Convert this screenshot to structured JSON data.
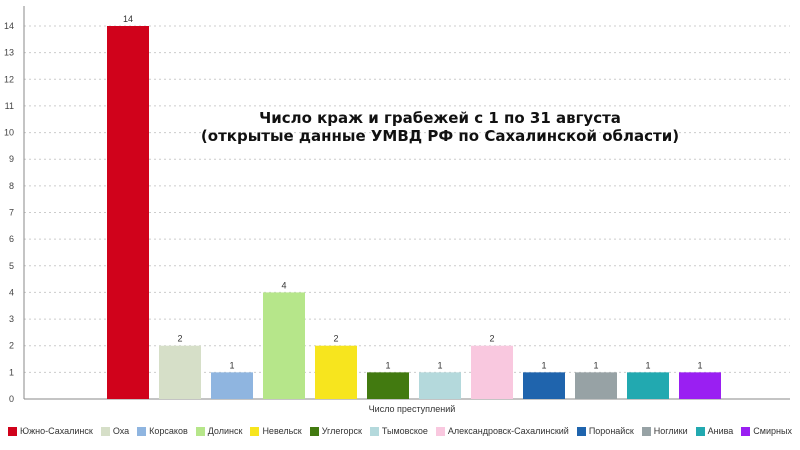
{
  "chart_data": {
    "type": "bar",
    "title": [
      "Число краж и грабежей с 1 по 31 августа",
      "(открытые данные УМВД РФ по Сахалинской области)"
    ],
    "xlabel": "Число преступлений",
    "ylabel": "",
    "ylim": [
      0,
      14
    ],
    "yticks": [
      0,
      1,
      2,
      3,
      4,
      5,
      6,
      7,
      8,
      9,
      10,
      11,
      12,
      13,
      14
    ],
    "grid": true,
    "legend_position": "bottom",
    "categories": [
      "Южно-Сахалинск",
      "Оха",
      "Корсаков",
      "Долинск",
      "Невельск",
      "Углегорск",
      "Тымовское",
      "Александровск-Сахалинский",
      "Поронайск",
      "Ноглики",
      "Анива",
      "Смирных"
    ],
    "values": [
      14,
      2,
      1,
      4,
      2,
      1,
      1,
      2,
      1,
      1,
      1,
      1
    ],
    "colors": [
      "#d0021b",
      "#d6dfc8",
      "#8fb5e0",
      "#b6e68a",
      "#f7e51e",
      "#427a10",
      "#b4d9dc",
      "#f9c8df",
      "#1f64ad",
      "#97a2a5",
      "#22a9b0",
      "#9a1ff2"
    ]
  }
}
